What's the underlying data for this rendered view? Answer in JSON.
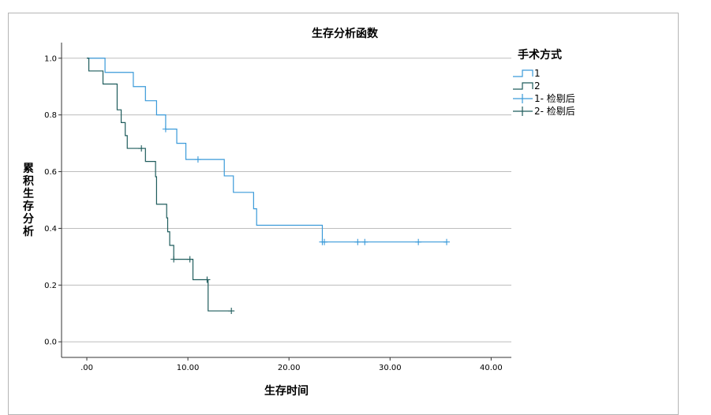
{
  "chart_data": {
    "type": "line",
    "title": "生存分析函数",
    "xlabel": "生存时间",
    "ylabel": "累积生存分析",
    "xlim": [
      -2.5,
      42
    ],
    "ylim": [
      -0.055,
      1.055
    ],
    "x_ticks": [
      0,
      10,
      20,
      30,
      40
    ],
    "x_tick_labels": [
      ".00",
      "10.00",
      "20.00",
      "30.00",
      "40.00"
    ],
    "y_ticks": [
      0.0,
      0.2,
      0.4,
      0.6,
      0.8,
      1.0
    ],
    "y_tick_labels": [
      "0.0",
      "0.2",
      "0.4",
      "0.6",
      "0.8",
      "1.0"
    ],
    "grid": "horizontal",
    "legend": {
      "title": "手术方式",
      "position": "right",
      "entries": [
        "1",
        "2",
        "1- 检剔后",
        "2- 检剔后"
      ]
    },
    "series": [
      {
        "name": "1",
        "color": "#3a9ad9",
        "steps": [
          [
            0,
            1.0
          ],
          [
            1.8,
            0.95
          ],
          [
            4.6,
            0.9
          ],
          [
            5.8,
            0.85
          ],
          [
            6.9,
            0.8
          ],
          [
            7.8,
            0.75
          ],
          [
            8.9,
            0.7
          ],
          [
            9.8,
            0.643
          ],
          [
            13.6,
            0.585
          ],
          [
            14.5,
            0.527
          ],
          [
            16.5,
            0.469
          ],
          [
            16.8,
            0.411
          ],
          [
            23.3,
            0.352
          ],
          [
            35.6,
            0.352
          ]
        ],
        "censored": [
          [
            7.8,
            0.75
          ],
          [
            11.0,
            0.643
          ],
          [
            23.3,
            0.352
          ],
          [
            23.5,
            0.352
          ],
          [
            26.8,
            0.352
          ],
          [
            27.5,
            0.352
          ],
          [
            32.8,
            0.352
          ],
          [
            35.6,
            0.352
          ]
        ]
      },
      {
        "name": "2",
        "color": "#1f5c5c",
        "steps": [
          [
            0,
            1.0
          ],
          [
            0.2,
            0.955
          ],
          [
            1.6,
            0.909
          ],
          [
            3.0,
            0.818
          ],
          [
            3.4,
            0.773
          ],
          [
            3.8,
            0.727
          ],
          [
            4.0,
            0.682
          ],
          [
            5.8,
            0.636
          ],
          [
            6.8,
            0.582
          ],
          [
            6.9,
            0.485
          ],
          [
            7.9,
            0.437
          ],
          [
            8.0,
            0.388
          ],
          [
            8.2,
            0.34
          ],
          [
            8.6,
            0.291
          ],
          [
            10.5,
            0.219
          ],
          [
            12.0,
            0.109
          ],
          [
            14.3,
            0.109
          ]
        ],
        "censored": [
          [
            5.4,
            0.682
          ],
          [
            8.6,
            0.291
          ],
          [
            10.2,
            0.291
          ],
          [
            11.9,
            0.219
          ],
          [
            14.3,
            0.109
          ]
        ]
      }
    ]
  }
}
